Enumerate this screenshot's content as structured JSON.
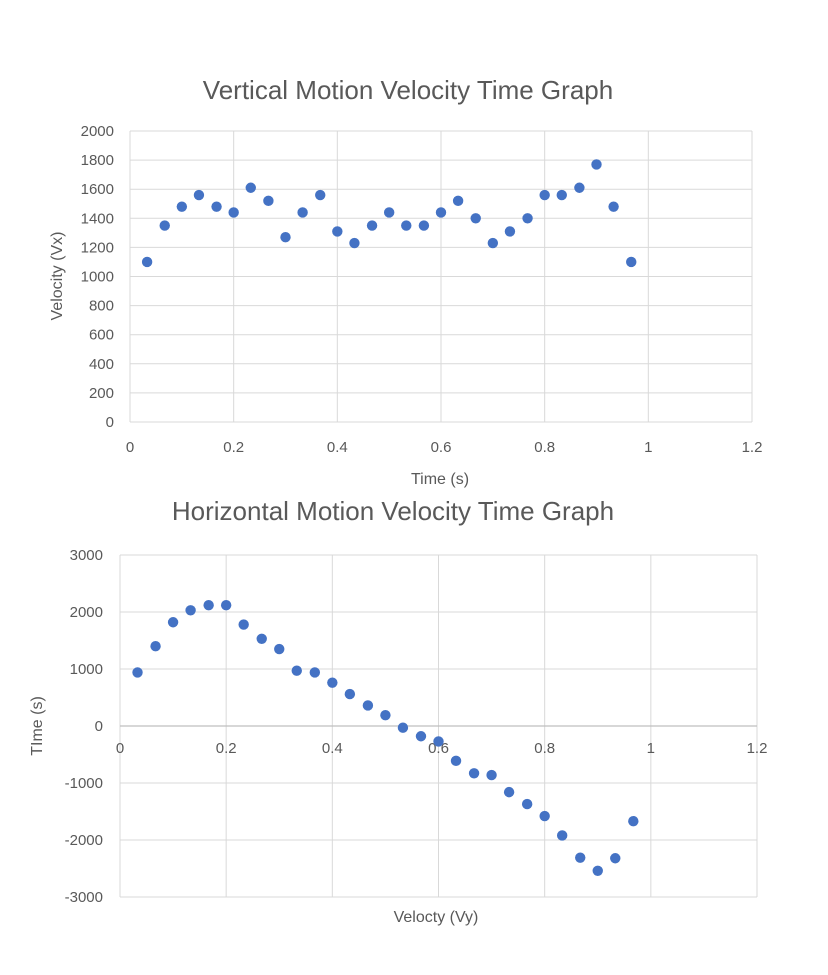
{
  "chart_data": [
    {
      "type": "scatter",
      "title": "Vertical Motion Velocity Time Graph",
      "xlabel": "Time (s)",
      "ylabel": "Velocity (Vx)",
      "xlim": [
        0,
        1.2
      ],
      "ylim": [
        0,
        2000
      ],
      "xticks": [
        "0",
        "0.2",
        "0.4",
        "0.6",
        "0.8",
        "1",
        "1.2"
      ],
      "yticks": [
        "0",
        "200",
        "400",
        "600",
        "800",
        "1000",
        "1200",
        "1400",
        "1600",
        "1800",
        "2000"
      ],
      "grid": true,
      "color": "#4472c4",
      "series": [
        {
          "x": [
            0.033,
            0.067,
            0.1,
            0.133,
            0.167,
            0.2,
            0.233,
            0.267,
            0.3,
            0.333,
            0.367,
            0.4,
            0.433,
            0.467,
            0.5,
            0.533,
            0.567,
            0.6,
            0.633,
            0.667,
            0.7,
            0.733,
            0.767,
            0.8,
            0.833,
            0.867,
            0.9,
            0.933,
            0.967
          ],
          "y": [
            1100,
            1350,
            1480,
            1560,
            1480,
            1440,
            1610,
            1520,
            1270,
            1440,
            1560,
            1310,
            1230,
            1350,
            1440,
            1350,
            1350,
            1440,
            1520,
            1400,
            1230,
            1310,
            1400,
            1560,
            1560,
            1610,
            1770,
            1480,
            1100
          ]
        }
      ]
    },
    {
      "type": "scatter",
      "title": "Horizontal Motion Velocity Time Graph",
      "xlabel": "Velocty (Vy)",
      "ylabel": "TIme (s)",
      "xlim": [
        0,
        1.2
      ],
      "ylim": [
        -3000,
        3000
      ],
      "xticks": [
        "0",
        "0.2",
        "0.4",
        "0.6",
        "0.8",
        "1",
        "1.2"
      ],
      "yticks": [
        "-3000",
        "-2000",
        "-1000",
        "0",
        "1000",
        "2000",
        "3000"
      ],
      "grid": true,
      "color": "#4472c4",
      "series": [
        {
          "x": [
            0.033,
            0.067,
            0.1,
            0.133,
            0.167,
            0.2,
            0.233,
            0.267,
            0.3,
            0.333,
            0.367,
            0.4,
            0.433,
            0.467,
            0.5,
            0.533,
            0.567,
            0.6,
            0.633,
            0.667,
            0.7,
            0.733,
            0.767,
            0.8,
            0.833,
            0.867,
            0.9,
            0.933,
            0.967
          ],
          "y": [
            940,
            1400,
            1820,
            2030,
            2120,
            2120,
            1780,
            1530,
            1350,
            970,
            940,
            760,
            560,
            360,
            190,
            -30,
            -180,
            -270,
            -610,
            -830,
            -860,
            -1160,
            -1370,
            -1580,
            -1920,
            -2310,
            -2540,
            -2320,
            -1670
          ]
        }
      ]
    }
  ]
}
